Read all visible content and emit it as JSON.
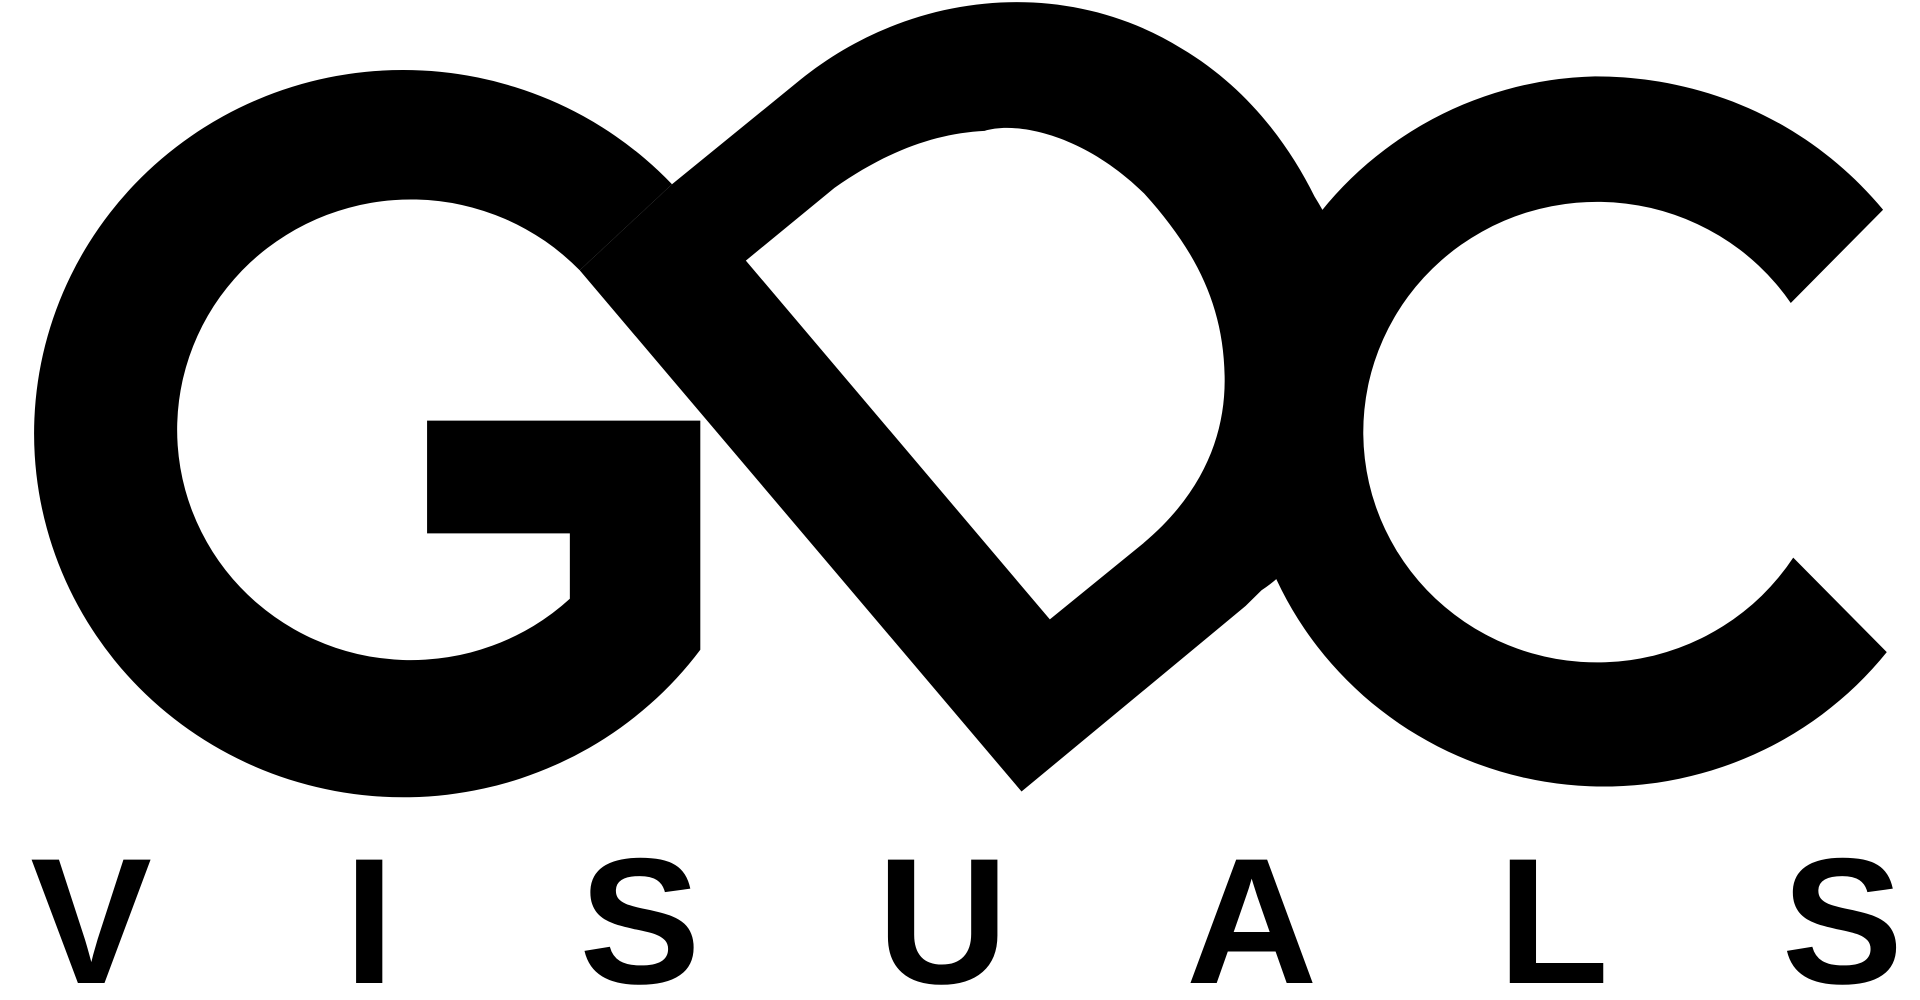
{
  "logo": {
    "monogram": "GDC",
    "wordmark_letters": [
      "V",
      "I",
      "S",
      "U",
      "A",
      "L",
      "S"
    ],
    "color": "#000000",
    "background": "#ffffff"
  }
}
